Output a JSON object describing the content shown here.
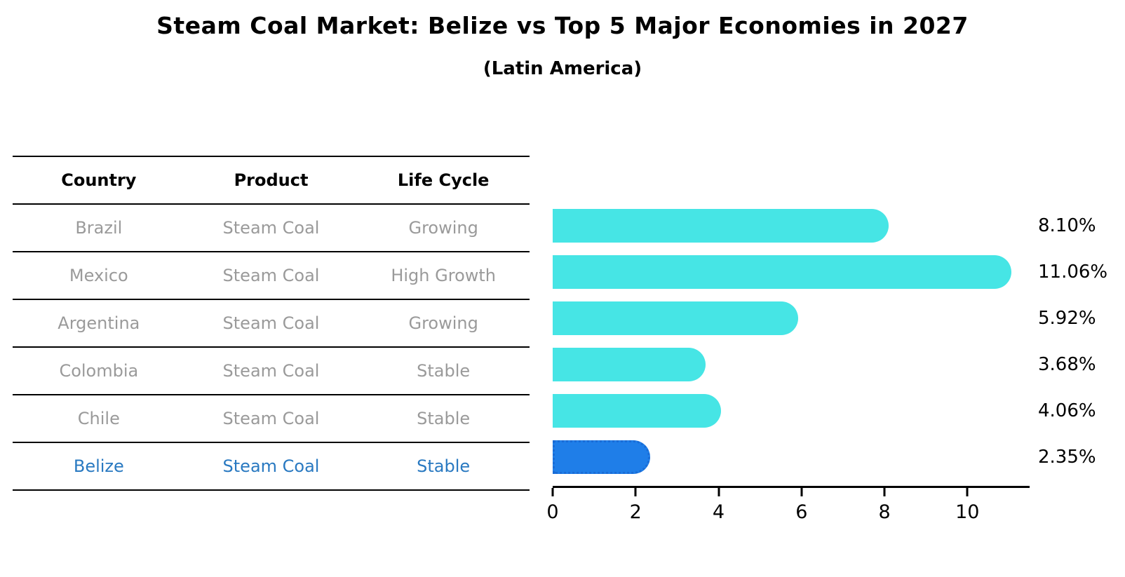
{
  "title": "Steam Coal Market: Belize vs Top 5 Major Economies in 2027",
  "subtitle": "(Latin America)",
  "colors": {
    "bar": "#46e5e5",
    "highlight_bar": "#1f7ee8",
    "highlight_bar_border": "#1a6cd6",
    "highlight_text": "#2979c1",
    "row_text": "#9a9a9a",
    "header_text": "#000000",
    "axis": "#000000"
  },
  "table": {
    "columns": [
      "Country",
      "Product",
      "Life Cycle"
    ],
    "rows": [
      {
        "country": "Brazil",
        "product": "Steam Coal",
        "life_cycle": "Growing",
        "highlight": false
      },
      {
        "country": "Mexico",
        "product": "Steam Coal",
        "life_cycle": "High Growth",
        "highlight": false
      },
      {
        "country": "Argentina",
        "product": "Steam Coal",
        "life_cycle": "Growing",
        "highlight": false
      },
      {
        "country": "Colombia",
        "product": "Steam Coal",
        "life_cycle": "Stable",
        "highlight": false
      },
      {
        "country": "Chile",
        "product": "Steam Coal",
        "life_cycle": "Stable",
        "highlight": false
      },
      {
        "country": "Belize",
        "product": "Steam Coal",
        "life_cycle": "Stable",
        "highlight": true
      }
    ]
  },
  "chart_data": {
    "type": "bar",
    "orientation": "horizontal",
    "title": "Steam Coal Market: Belize vs Top 5 Major Economies in 2027",
    "subtitle": "(Latin America)",
    "categories": [
      "Brazil",
      "Mexico",
      "Argentina",
      "Colombia",
      "Chile",
      "Belize"
    ],
    "values": [
      8.1,
      11.06,
      5.92,
      3.68,
      4.06,
      2.35
    ],
    "value_labels": [
      "8.10%",
      "11.06%",
      "5.92%",
      "3.68%",
      "4.06%",
      "2.35%"
    ],
    "highlight_category": "Belize",
    "xlabel": "",
    "ylabel": "",
    "xlim": [
      0,
      11.5
    ],
    "xticks": [
      0,
      2,
      4,
      6,
      8,
      10
    ],
    "grid": false,
    "legend": false
  }
}
